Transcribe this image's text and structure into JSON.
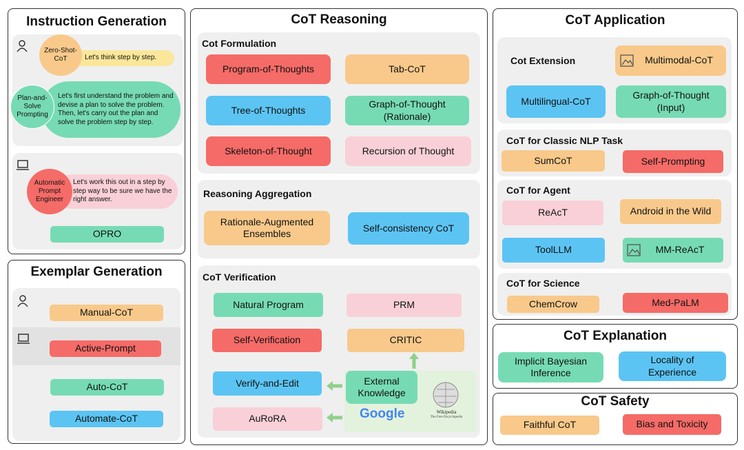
{
  "instruction_generation": {
    "title": "Instruction Generation",
    "human": [
      {
        "method": "Zero-Shot-CoT",
        "prompt": "Let's think step by step."
      },
      {
        "method": "Plan-and-Solve Prompting",
        "prompt": "Let's first understand the problem and devise a plan to solve the problem. Then, let's carry out the plan and solve the problem step by step."
      }
    ],
    "machine": [
      {
        "method": "Automatic Prompt Engineer",
        "prompt": "Let's work this out in a step by step way to be sure we have the right answer."
      },
      {
        "method": "OPRO"
      }
    ]
  },
  "exemplar_generation": {
    "title": "Exemplar Generation",
    "human": [
      "Manual-CoT"
    ],
    "machine": [
      "Active-Prompt",
      "Auto-CoT",
      "Automate-CoT"
    ]
  },
  "cot_reasoning": {
    "title": "CoT Reasoning",
    "groups": [
      {
        "label": "Cot Formulation",
        "items": [
          "Program-of-Thoughts",
          "Tab-CoT",
          "Tree-of-Thoughts",
          "Graph-of-Thought (Rationale)",
          "Skeleton-of-Thought",
          "Recursion of Thought"
        ]
      },
      {
        "label": "Reasoning Aggregation",
        "items": [
          "Rationale-Augmented Ensembles",
          "Self-consistency CoT"
        ]
      },
      {
        "label": "CoT Verification",
        "items": [
          "Natural Program",
          "PRM",
          "Self-Verification",
          "CRITIC",
          "Verify-and-Edit",
          "AuRoRA"
        ],
        "knowledge": {
          "label": "External Knowledge",
          "sources": [
            "Google",
            "Wikipedia",
            "The Free Encyclopedia"
          ]
        }
      }
    ]
  },
  "cot_application": {
    "title": "CoT Application",
    "groups": [
      {
        "label": "Cot Extension",
        "items": [
          "Multimodal-CoT",
          "Multilingual-CoT",
          "Graph-of-Thought (Input)"
        ]
      },
      {
        "label": "CoT for Classic NLP Task",
        "items": [
          "SumCoT",
          "Self-Prompting"
        ]
      },
      {
        "label": "CoT for Agent",
        "items": [
          "ReAcT",
          "Android in the Wild",
          "ToolLLM",
          "MM-ReAcT"
        ]
      },
      {
        "label": "CoT for Science",
        "items": [
          "ChemCrow",
          "Med-PaLM"
        ]
      }
    ]
  },
  "cot_explanation": {
    "title": "CoT Explanation",
    "items": [
      "Implicit Bayesian Inference",
      "Locality of Experience"
    ]
  },
  "cot_safety": {
    "title": "CoT Safety",
    "items": [
      "Faithful CoT",
      "Bias and Toxicity"
    ]
  }
}
